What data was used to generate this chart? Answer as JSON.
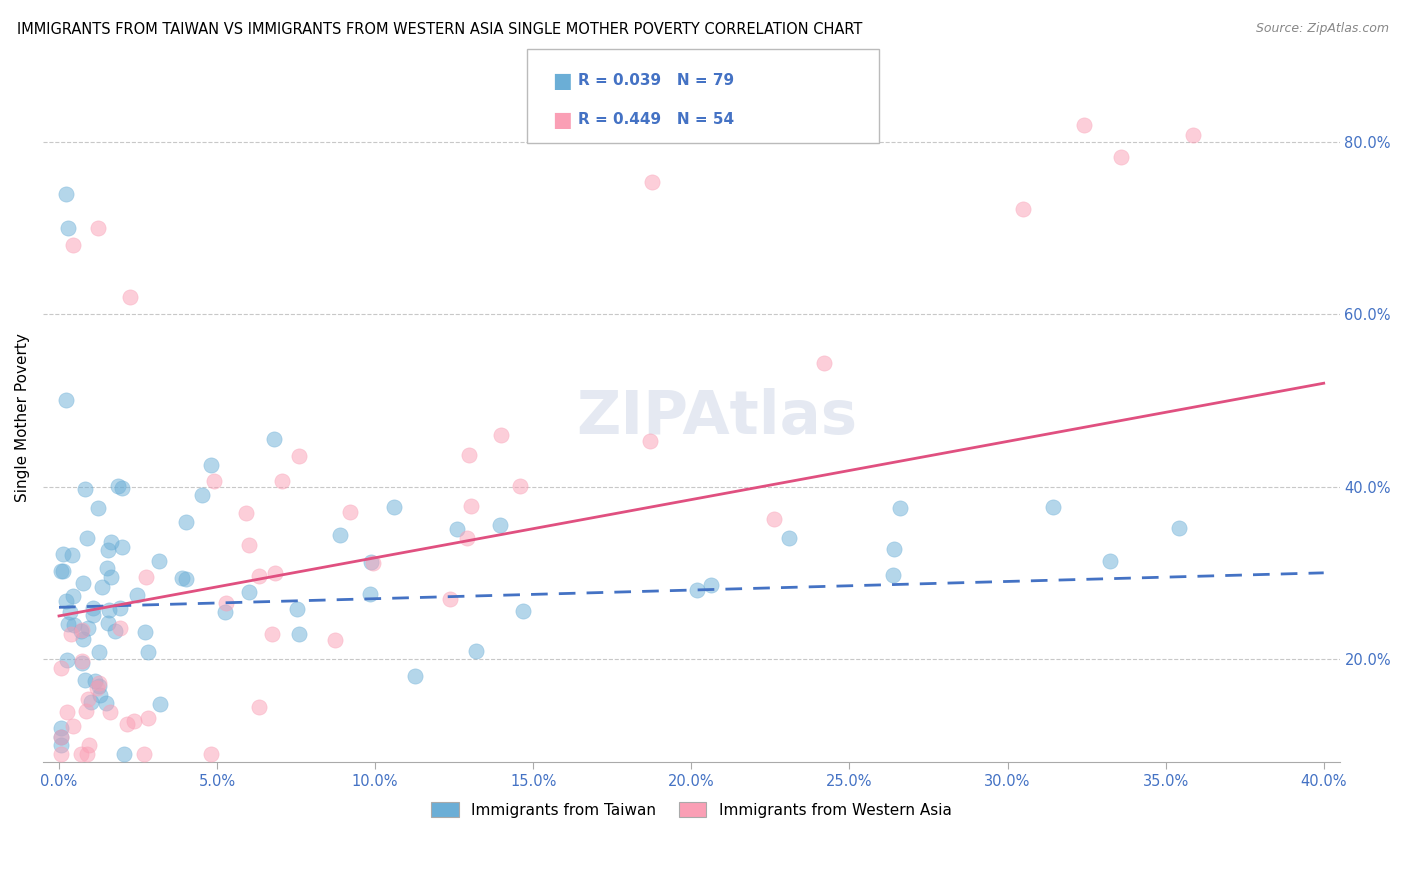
{
  "title": "IMMIGRANTS FROM TAIWAN VS IMMIGRANTS FROM WESTERN ASIA SINGLE MOTHER POVERTY CORRELATION CHART",
  "source": "Source: ZipAtlas.com",
  "ylabel": "Single Mother Poverty",
  "color_taiwan": "#6baed6",
  "color_western": "#fa9fb5",
  "trendline_taiwan": "#4472c4",
  "trendline_western": "#e05080",
  "watermark": "ZIPAtlas",
  "R_taiwan": 0.039,
  "N_taiwan": 79,
  "R_western": 0.449,
  "N_western": 54,
  "xlim": [
    0,
    0.4
  ],
  "ylim": [
    0.08,
    0.88
  ],
  "yticks": [
    0.2,
    0.4,
    0.6,
    0.8
  ],
  "ytick_labels": [
    "20.0%",
    "40.0%",
    "60.0%",
    "80.0%"
  ],
  "xticks": [
    0.0,
    0.05,
    0.1,
    0.15,
    0.2,
    0.25,
    0.3,
    0.35,
    0.4
  ],
  "xtick_labels": [
    "0.0%",
    "5.0%",
    "10.0%",
    "15.0%",
    "20.0%",
    "25.0%",
    "30.0%",
    "35.0%",
    "40.0%"
  ]
}
